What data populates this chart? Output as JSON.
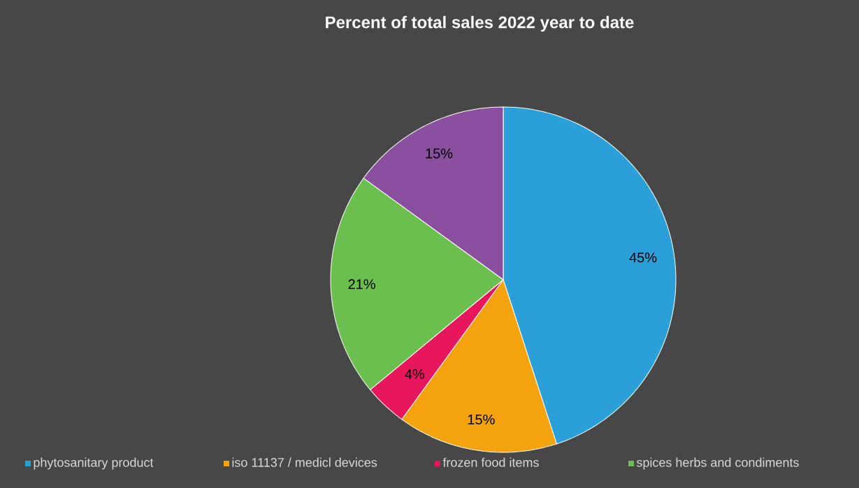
{
  "chart_data": {
    "type": "pie",
    "title": "Percent of total sales 2022 year to date",
    "categories": [
      "phytosanitary product",
      "iso 11137 / medicl devices",
      "frozen food items",
      "spices herbs and condiments",
      null
    ],
    "values": [
      45,
      15,
      4,
      21,
      15
    ],
    "value_labels": [
      "45%",
      "15%",
      "4%",
      "21%",
      "15%"
    ],
    "colors": [
      "#2a9fd8",
      "#f5a20f",
      "#e8175d",
      "#6bbf4e",
      "#8a4f9e"
    ],
    "legend": "bottom"
  }
}
